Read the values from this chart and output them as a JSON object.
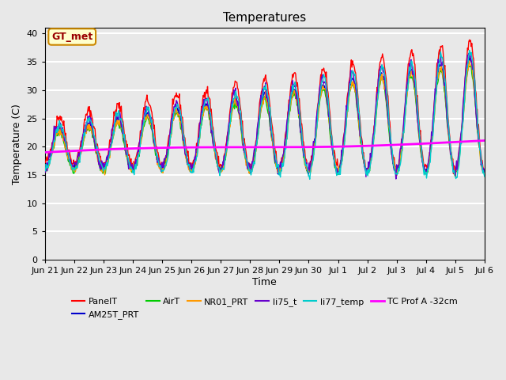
{
  "title": "Temperatures",
  "xlabel": "Time",
  "ylabel": "Temperature (C)",
  "ylim": [
    0,
    41
  ],
  "yticks": [
    0,
    5,
    10,
    15,
    20,
    25,
    30,
    35,
    40
  ],
  "background_color": "#e8e8e8",
  "plot_bg_color": "#e8e8e8",
  "grid_color": "white",
  "annotation_text": "GT_met",
  "annotation_bg": "#ffffcc",
  "annotation_border": "#cc8800",
  "annotation_text_color": "#990000",
  "series_colors": {
    "PanelT": "#ff0000",
    "AM25T_PRT": "#0000cc",
    "AirT": "#00cc00",
    "NR01_PRT": "#ff9900",
    "li75_t": "#6600cc",
    "li77_temp": "#00cccc",
    "TC Prof A -32cm": "#ff00ff"
  },
  "x_tick_labels": [
    "Jun 21",
    "Jun 22",
    "Jun 23",
    "Jun 24",
    "Jun 25",
    "Jun 26",
    "Jun 27",
    "Jun 28",
    "Jun 29",
    "Jun 30",
    "Jul 1",
    "Jul 2",
    "Jul 3",
    "Jul 4",
    "Jul 5",
    "Jul 6"
  ],
  "num_days": 15,
  "points_per_day": 48
}
